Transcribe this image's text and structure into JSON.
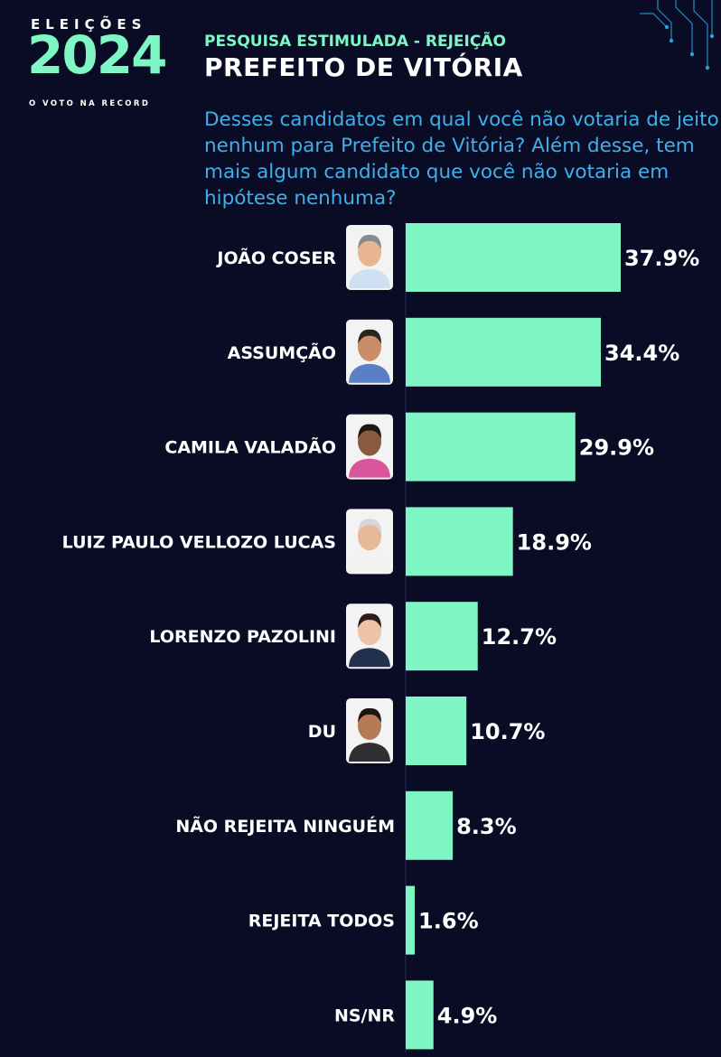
{
  "header": {
    "logo_top": "ELEIÇÕES",
    "logo_year": "2024",
    "logo_bottom": "O VOTO NA RECORD",
    "subtitle": "PESQUISA ESTIMULADA - REJEIÇÃO",
    "title": "PREFEITO DE VITÓRIA",
    "question": "Desses candidatos em qual você não votaria de jeito nenhum para Prefeito de Vitória? Além desse, tem mais algum candidato que você não votaria em hipótese nenhuma?"
  },
  "colors": {
    "background": "#0a0c26",
    "bar": "#7ff7c4",
    "question": "#3fb0e8",
    "subtitle": "#7ff7c4"
  },
  "chart_data": {
    "type": "bar",
    "orientation": "horizontal",
    "categories": [
      "JOÃO COSER",
      "ASSUMÇÃO",
      "CAMILA VALADÃO",
      "LUIZ PAULO VELLOZO LUCAS",
      "LORENZO PAZOLINI",
      "DU",
      "NÃO REJEITA NINGUÉM",
      "REJEITA TODOS",
      "NS/NR"
    ],
    "values": [
      37.9,
      34.4,
      29.9,
      18.9,
      12.7,
      10.7,
      8.3,
      1.6,
      4.9
    ],
    "value_labels": [
      "37.9%",
      "34.4%",
      "29.9%",
      "18.9%",
      "12.7%",
      "10.7%",
      "8.3%",
      "1.6%",
      "4.9%"
    ],
    "has_photo": [
      true,
      true,
      true,
      true,
      true,
      true,
      false,
      false,
      false
    ],
    "photo_colors": [
      {
        "skin": "#e7b690",
        "shirt": "#cfe0f2",
        "hair": "#8a8a8a"
      },
      {
        "skin": "#c98e68",
        "shirt": "#5b7fc4",
        "hair": "#2a2420"
      },
      {
        "skin": "#8a5a3e",
        "shirt": "#d9559c",
        "hair": "#1e1612"
      },
      {
        "skin": "#e6b99a",
        "shirt": "#f2f2f2",
        "hair": "#d6d6d6"
      },
      {
        "skin": "#eec3a5",
        "shirt": "#22304f",
        "hair": "#2a1e16"
      },
      {
        "skin": "#b47a55",
        "shirt": "#2f2f35",
        "hair": "#1c1512"
      }
    ],
    "xlim": [
      0,
      40
    ],
    "grid": false,
    "legend": "none"
  }
}
